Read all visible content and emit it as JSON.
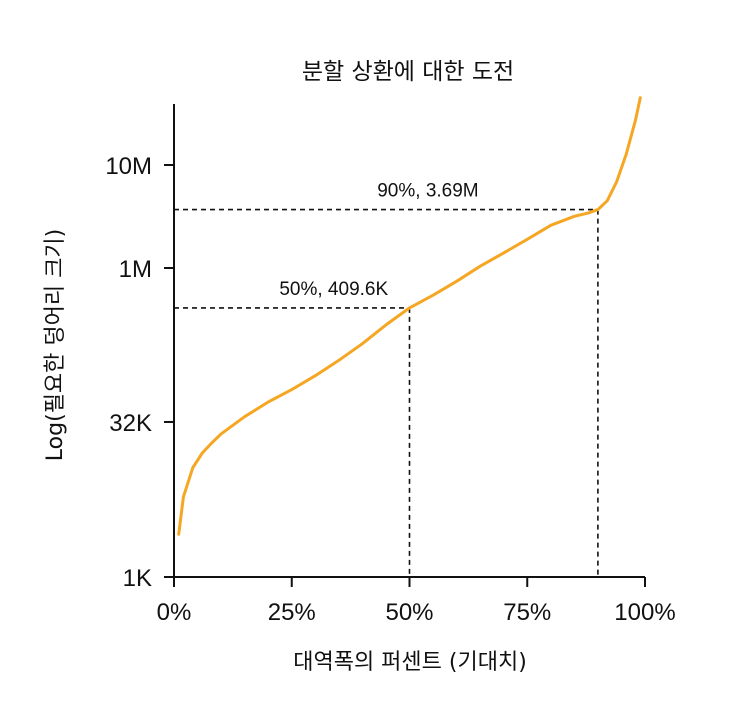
{
  "chart_data": {
    "type": "line",
    "title": "분할 상환에 대한 도전",
    "xlabel": "대역폭의 퍼센트 (기대치)",
    "ylabel": "Log(필요한 덩어리 크기)",
    "x_ticks": [
      {
        "value": 0,
        "label": "0%"
      },
      {
        "value": 25,
        "label": "25%"
      },
      {
        "value": 50,
        "label": "50%"
      },
      {
        "value": 75,
        "label": "75%"
      },
      {
        "value": 100,
        "label": "100%"
      }
    ],
    "y_scale": "log",
    "y_ticks": [
      {
        "value": 1000,
        "label": "1K"
      },
      {
        "value": 32000,
        "label": "32K"
      },
      {
        "value": 1000000,
        "label": "1M"
      },
      {
        "value": 10000000,
        "label": "10M"
      }
    ],
    "xlim": [
      0,
      100
    ],
    "ylim": [
      1000,
      60000000
    ],
    "grid": false,
    "line_color": "#F5A623",
    "series": [
      {
        "x": [
          1,
          2,
          4,
          6,
          8,
          10,
          15,
          20,
          25,
          30,
          35,
          40,
          45,
          50,
          55,
          60,
          65,
          70,
          75,
          80,
          85,
          88,
          90,
          92,
          94,
          96,
          98,
          99
        ],
        "y": [
          2600,
          6000,
          11500,
          16000,
          20000,
          24500,
          36000,
          50000,
          66000,
          90000,
          127000,
          184000,
          280000,
          409600,
          544000,
          742000,
          1040000,
          1400000,
          1900000,
          2600000,
          3180000,
          3430000,
          3690000,
          4500000,
          6900000,
          12700000,
          27500000,
          45000000
        ]
      }
    ],
    "annotations": [
      {
        "x": 50,
        "y": 409600,
        "label": "50%, 409.6K"
      },
      {
        "x": 90,
        "y": 3690000,
        "label": "90%, 3.69M"
      }
    ]
  }
}
